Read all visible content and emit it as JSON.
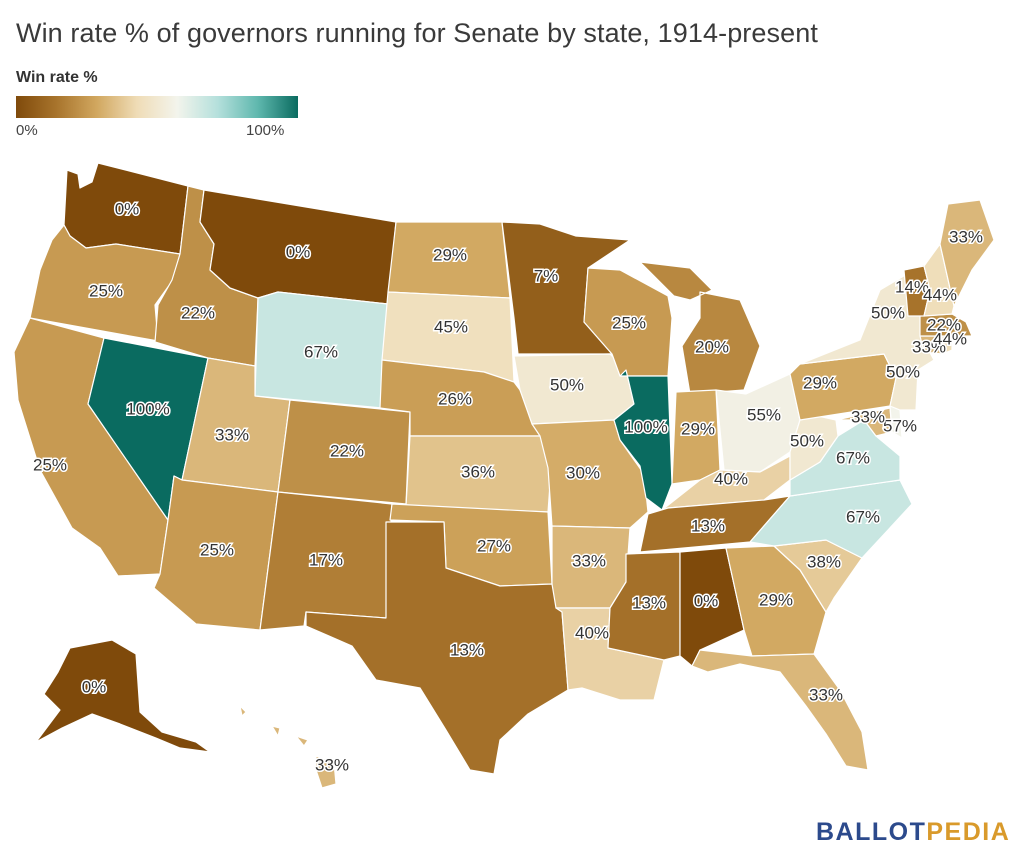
{
  "title": "Win rate % of governors running for Senate by state, 1914-present",
  "legend": {
    "title": "Win rate %",
    "min_label": "0%",
    "max_label": "100%",
    "stops": [
      "#7f4a0b",
      "#a8742c",
      "#d1a75f",
      "#efdcb6",
      "#f3f4ec",
      "#b5e0dc",
      "#5fb8ae",
      "#0a6b60"
    ]
  },
  "chart_data": {
    "type": "choropleth",
    "title": "Win rate % of governors running for Senate by state, 1914-present",
    "legend_title": "Win rate %",
    "scale": {
      "min": 0,
      "max": 100
    },
    "states": [
      {
        "state": "WA",
        "value": 0,
        "label": "0%"
      },
      {
        "state": "OR",
        "value": 25,
        "label": "25%"
      },
      {
        "state": "CA",
        "value": 25,
        "label": "25%"
      },
      {
        "state": "NV",
        "value": 100,
        "label": "100%"
      },
      {
        "state": "ID",
        "value": 22,
        "label": "22%"
      },
      {
        "state": "MT",
        "value": 0,
        "label": "0%"
      },
      {
        "state": "WY",
        "value": 67,
        "label": "67%"
      },
      {
        "state": "UT",
        "value": 33,
        "label": "33%"
      },
      {
        "state": "AZ",
        "value": 25,
        "label": "25%"
      },
      {
        "state": "CO",
        "value": 22,
        "label": "22%"
      },
      {
        "state": "NM",
        "value": 17,
        "label": "17%"
      },
      {
        "state": "ND",
        "value": 29,
        "label": "29%"
      },
      {
        "state": "SD",
        "value": 45,
        "label": "45%"
      },
      {
        "state": "NE",
        "value": 26,
        "label": "26%"
      },
      {
        "state": "KS",
        "value": 36,
        "label": "36%"
      },
      {
        "state": "OK",
        "value": 27,
        "label": "27%"
      },
      {
        "state": "TX",
        "value": 13,
        "label": "13%"
      },
      {
        "state": "MN",
        "value": 7,
        "label": "7%"
      },
      {
        "state": "IA",
        "value": 50,
        "label": "50%"
      },
      {
        "state": "MO",
        "value": 30,
        "label": "30%"
      },
      {
        "state": "AR",
        "value": 33,
        "label": "33%"
      },
      {
        "state": "LA",
        "value": 40,
        "label": "40%"
      },
      {
        "state": "WI",
        "value": 25,
        "label": "25%"
      },
      {
        "state": "IL",
        "value": 100,
        "label": "100%"
      },
      {
        "state": "MI",
        "value": 20,
        "label": "20%"
      },
      {
        "state": "IN",
        "value": 29,
        "label": "29%"
      },
      {
        "state": "OH",
        "value": 55,
        "label": "55%"
      },
      {
        "state": "KY",
        "value": 40,
        "label": "40%"
      },
      {
        "state": "TN",
        "value": 13,
        "label": "13%"
      },
      {
        "state": "MS",
        "value": 13,
        "label": "13%"
      },
      {
        "state": "AL",
        "value": 0,
        "label": "0%"
      },
      {
        "state": "GA",
        "value": 29,
        "label": "29%"
      },
      {
        "state": "FL",
        "value": 33,
        "label": "33%"
      },
      {
        "state": "SC",
        "value": 38,
        "label": "38%"
      },
      {
        "state": "NC",
        "value": 67,
        "label": "67%"
      },
      {
        "state": "VA",
        "value": 67,
        "label": "67%"
      },
      {
        "state": "WV",
        "value": 50,
        "label": "50%"
      },
      {
        "state": "PA",
        "value": 29,
        "label": "29%"
      },
      {
        "state": "NY",
        "value": 50,
        "label": "50%"
      },
      {
        "state": "NJ",
        "value": 50,
        "label": "50%"
      },
      {
        "state": "DE",
        "value": 57,
        "label": "57%"
      },
      {
        "state": "MD",
        "value": 33,
        "label": "33%"
      },
      {
        "state": "CT",
        "value": 33,
        "label": "33%"
      },
      {
        "state": "RI",
        "value": 44,
        "label": "44%"
      },
      {
        "state": "MA",
        "value": 22,
        "label": "22%"
      },
      {
        "state": "VT",
        "value": 14,
        "label": "14%"
      },
      {
        "state": "NH",
        "value": 44,
        "label": "44%"
      },
      {
        "state": "ME",
        "value": 33,
        "label": "33%"
      },
      {
        "state": "AK",
        "value": 0,
        "label": "0%"
      },
      {
        "state": "HI",
        "value": 33,
        "label": "33%"
      }
    ]
  },
  "brand": {
    "part1": "BALLOT",
    "part2": "PEDIA"
  }
}
